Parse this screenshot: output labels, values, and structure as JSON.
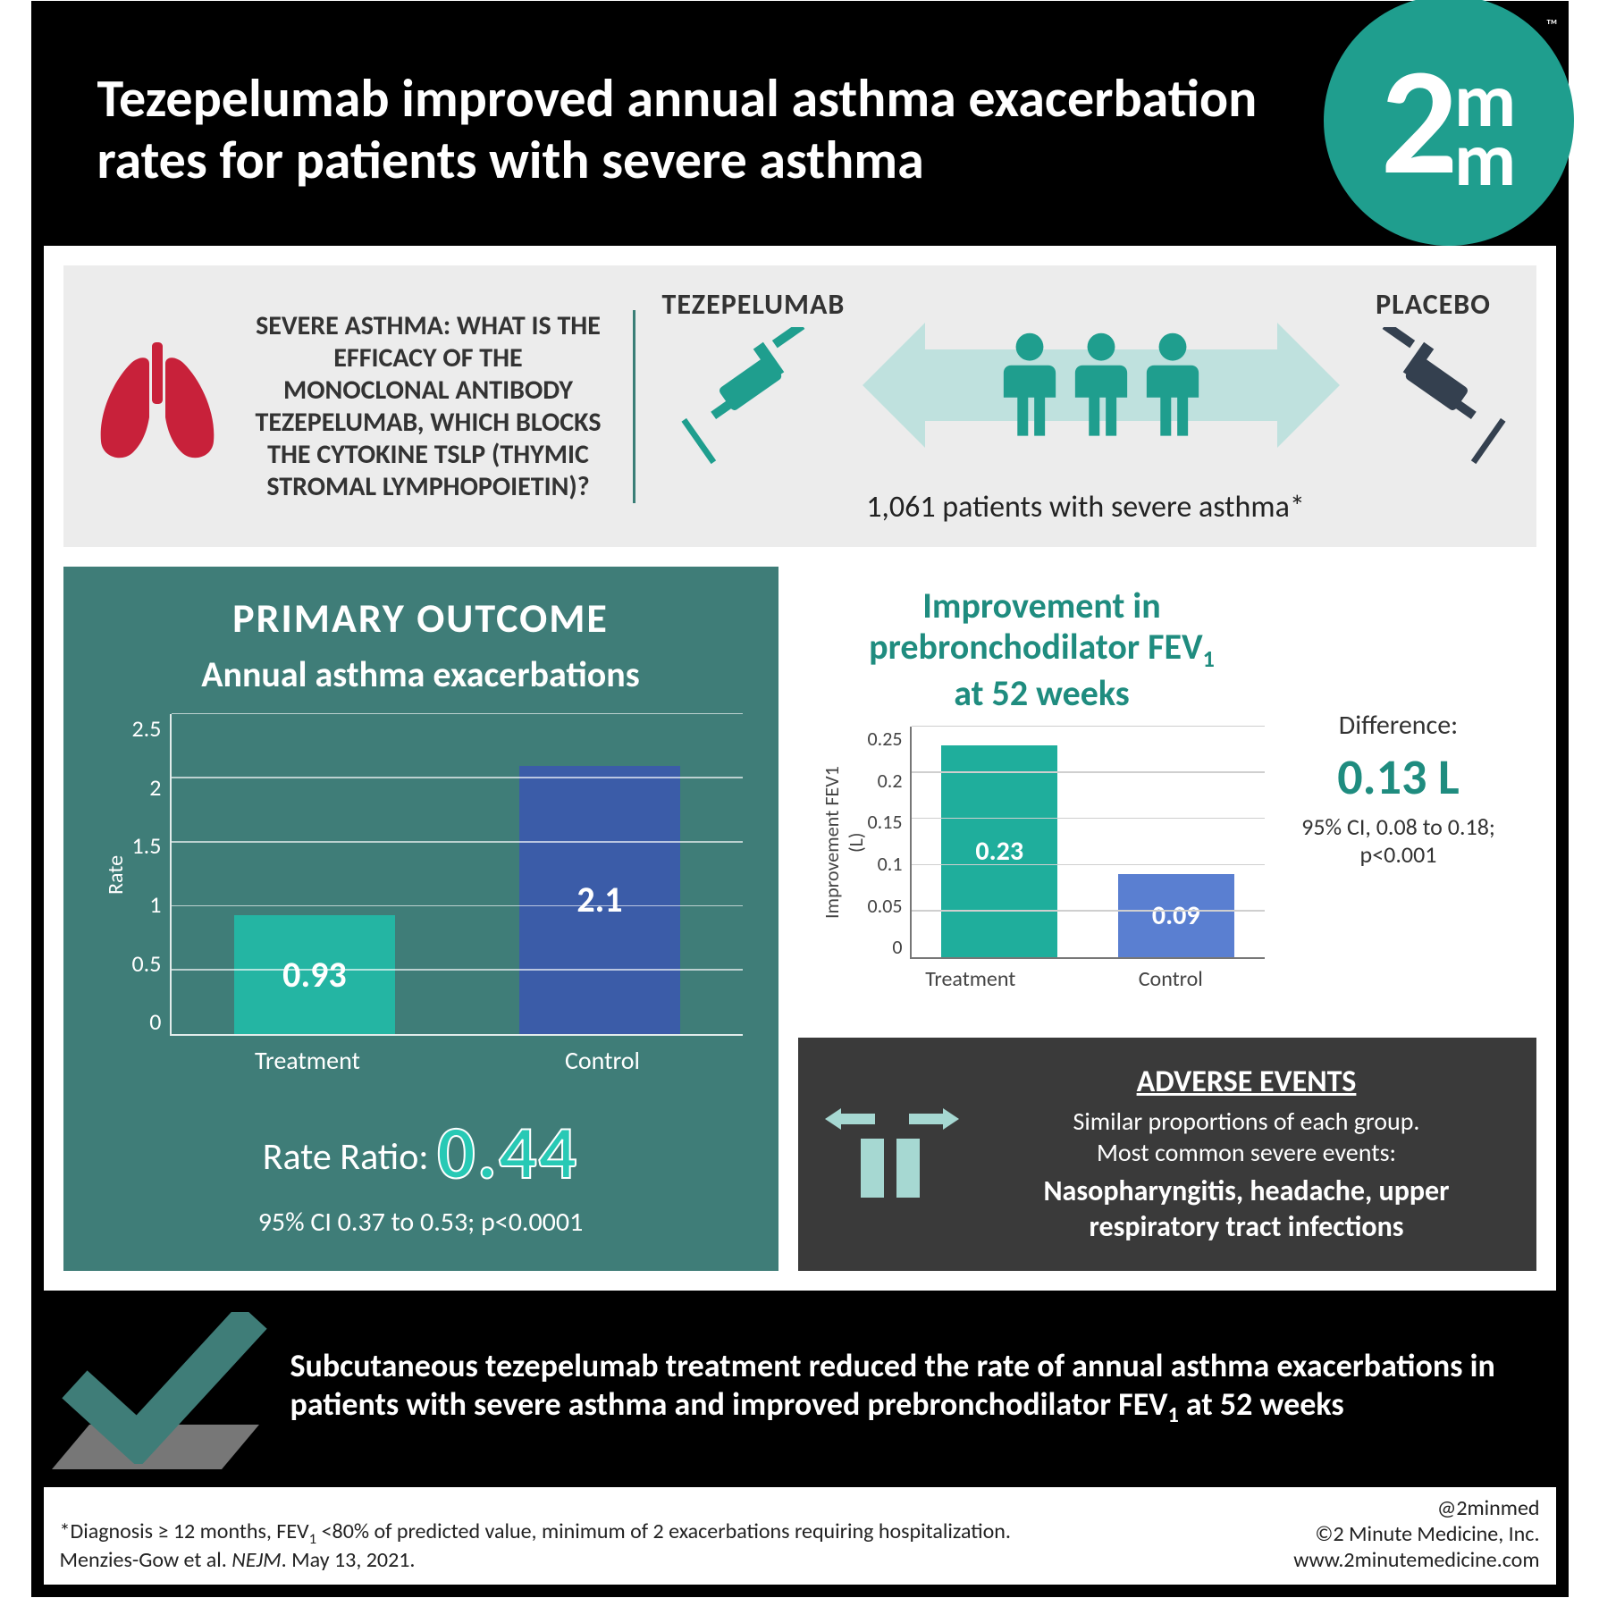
{
  "header": {
    "title": "Tezepelumab improved annual asthma exacerbation rates for patients with severe asthma",
    "logo_big": "2",
    "logo_small1": "m",
    "logo_small2": "m",
    "logo_tm": "™"
  },
  "strip": {
    "question_html": "SEVERE ASTHMA: WHAT IS THE EFFICACY OF THE MONOCLONAL ANTIBODY TEZEPELUMAB, WHICH BLOCKS THE CYTOKINE TSLP (THYMIC STROMAL LYMPHOPOIETIN)?",
    "arm_treatment": "TEZEPELUMAB",
    "arm_control": "PLACEBO",
    "patients_caption": "1,061 patients with severe asthma*",
    "colors": {
      "lungs": "#c8213a",
      "syringe_treatment": "#1f9e8e",
      "syringe_control": "#34404f",
      "people": "#1f9e8e",
      "arrow": "#bfe1de"
    }
  },
  "primary": {
    "panel_bg": "#3f7d78",
    "heading": "PRIMARY OUTCOME",
    "subheading": "Annual asthma exacerbations",
    "chart": {
      "type": "bar",
      "ylabel": "Rate",
      "ylim": [
        0,
        2.5
      ],
      "ytick_step": 0.5,
      "yticks": [
        "2.5",
        "2",
        "1.5",
        "1",
        "0.5",
        "0"
      ],
      "categories": [
        "Treatment",
        "Control"
      ],
      "values": [
        0.93,
        2.1
      ],
      "value_labels": [
        "0.93",
        "2.1"
      ],
      "bar_colors": [
        "#24b5a3",
        "#3b5ca8"
      ],
      "gridline_color": "rgba(255,255,255,.65)",
      "axis_color": "rgba(255,255,255,.85)",
      "label_fontsize": 26,
      "value_fontsize": 40
    },
    "rate_ratio_label": "Rate Ratio:",
    "rate_ratio_value": "0.44",
    "rate_ratio_color": "#28c9b5",
    "ci": "95% CI 0.37 to 0.53; p<0.0001"
  },
  "fev": {
    "title_line1": "Improvement in prebronchodilator FEV",
    "title_sub": "1",
    "title_line2": "at 52 weeks",
    "title_color": "#1f8c7f",
    "chart": {
      "type": "bar",
      "ylabel": "Improvement FEV1\n(L)",
      "ylim": [
        0,
        0.25
      ],
      "ytick_step": 0.05,
      "yticks": [
        "0.25",
        "0.2",
        "0.15",
        "0.1",
        "0.05",
        "0"
      ],
      "categories": [
        "Treatment",
        "Control"
      ],
      "values": [
        0.23,
        0.09
      ],
      "value_labels": [
        "0.23",
        "0.09"
      ],
      "bar_colors": [
        "#1fae9c",
        "#5a7fd1"
      ],
      "gridline_color": "#cfcfcf",
      "axis_color": "#777"
    },
    "diff_label": "Difference:",
    "diff_value": "0.13 L",
    "diff_value_color": "#1f8c7f",
    "diff_ci": "95% CI, 0.08 to 0.18; p<0.001"
  },
  "adverse": {
    "panel_bg": "#3a3a3a",
    "icon_color": "#a6d8d2",
    "heading": "ADVERSE EVENTS",
    "line1": "Similar proportions of each group.",
    "line2": "Most common severe events:",
    "events": "Nasopharyngitis, headache, upper respiratory tract infections"
  },
  "conclusion": {
    "check_color": "#3f7d78",
    "text_before": "Subcutaneous tezepelumab treatment reduced the rate of annual asthma exacerbations in patients with severe asthma and improved prebronchodilator FEV",
    "text_sub": "1",
    "text_after": " at 52 weeks"
  },
  "footer": {
    "note_before": "*Diagnosis ≥ 12 months, FEV",
    "note_sub": "1",
    "note_after": " <80% of predicted value, minimum of 2 exacerbations requiring hospitalization.",
    "citation_before": "Menzies-Gow et al. ",
    "citation_journal": "NEJM",
    "citation_after": ". May 13, 2021.",
    "handle": "@2minmed",
    "copyright": "©2 Minute Medicine, Inc.",
    "url": "www.2minutemedicine.com"
  }
}
